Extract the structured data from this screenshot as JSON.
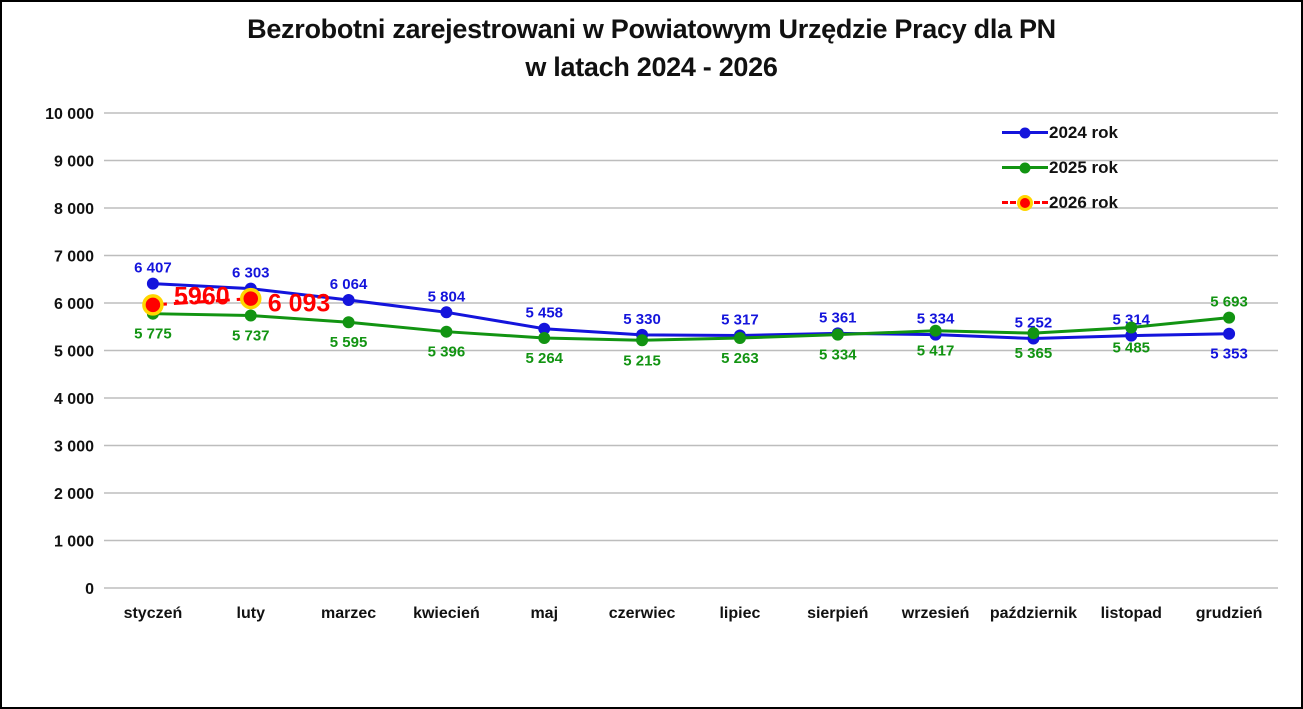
{
  "window": {
    "background": "#FFFFFF",
    "border_color": "#000000"
  },
  "chart_data": {
    "type": "line",
    "title": "Bezrobotni zarejestrowani w Powiatowym Urzędzie Pracy dla PN",
    "subtitle": "w latach 2024 - 2026",
    "categories": [
      "styczeń",
      "luty",
      "marzec",
      "kwiecień",
      "maj",
      "czerwiec",
      "lipiec",
      "sierpień",
      "wrzesień",
      "październik",
      "listopad",
      "grudzień"
    ],
    "xlabel": "",
    "ylabel": "",
    "ylim": [
      0,
      10000
    ],
    "ytick_step": 1000,
    "ytick_labels": [
      "0",
      "1 000",
      "2 000",
      "3 000",
      "4 000",
      "5 000",
      "6 000",
      "7 000",
      "8 000",
      "9 000",
      "10 000"
    ],
    "grid": true,
    "gridline_color": "#BDBDBD",
    "legend_position": "top-right",
    "series": [
      {
        "name": "2024 rok",
        "color": "#1414DC",
        "dashed": false,
        "marker_radius": 6,
        "label_size": 15,
        "values": [
          6407,
          6303,
          6064,
          5804,
          5458,
          5330,
          5317,
          5361,
          5334,
          5252,
          5314,
          5353
        ],
        "labels": [
          "6 407",
          "6 303",
          "6 064",
          "5 804",
          "5 458",
          "5 330",
          "5 317",
          "5 361",
          "5 334",
          "5 252",
          "5 314",
          "5 353"
        ],
        "label_positions": [
          "above",
          "above",
          "above",
          "above",
          "above",
          "above",
          "above",
          "above",
          "above",
          "above",
          "above",
          "below"
        ]
      },
      {
        "name": "2025 rok",
        "color": "#129412",
        "dashed": false,
        "marker_radius": 6,
        "label_size": 15,
        "values": [
          5775,
          5737,
          5595,
          5396,
          5264,
          5215,
          5263,
          5334,
          5417,
          5365,
          5485,
          5693
        ],
        "labels": [
          "5 775",
          "5 737",
          "5 595",
          "5 396",
          "5 264",
          "5 215",
          "5 263",
          "5 334",
          "5 417",
          "5 365",
          "5 485",
          "5 693"
        ],
        "label_positions": [
          "below",
          "below",
          "below",
          "below",
          "below",
          "below",
          "below",
          "below",
          "below",
          "below",
          "below",
          "above"
        ]
      },
      {
        "name": "2026 rok",
        "color": "#FF0000",
        "marker_ring": "#FFD600",
        "dashed": true,
        "marker_radius": 9,
        "label_size": 25,
        "values": [
          5960,
          6093,
          null,
          null,
          null,
          null,
          null,
          null,
          null,
          null,
          null,
          null
        ],
        "labels": [
          "5960",
          "6 093"
        ],
        "label_positions": [
          "between",
          "right"
        ]
      }
    ]
  }
}
